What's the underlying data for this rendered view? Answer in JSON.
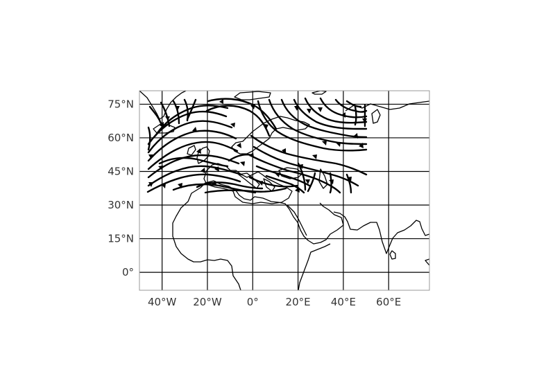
{
  "map": {
    "projection": "PlateCarree",
    "lon_range": [
      -50,
      78
    ],
    "lat_range": [
      -8,
      81
    ],
    "gridlines": {
      "lon": [
        -40,
        -20,
        0,
        20,
        40,
        60
      ],
      "lat": [
        0,
        15,
        30,
        45,
        60,
        75
      ]
    },
    "lon_tick_labels": [
      "40°W",
      "20°W",
      "0°",
      "20°E",
      "40°E",
      "60°E"
    ],
    "lat_tick_labels": [
      "0°",
      "15°N",
      "30°N",
      "45°N",
      "60°N",
      "75°N"
    ],
    "streamline_region": {
      "lon_range": [
        -46,
        50
      ],
      "lat_range": [
        36,
        78
      ]
    },
    "colors": {
      "coastline": "#000000",
      "streamlines": "#000000",
      "gridlines": "#000000",
      "frame": "#999999",
      "tick_labels": "#333333"
    }
  }
}
